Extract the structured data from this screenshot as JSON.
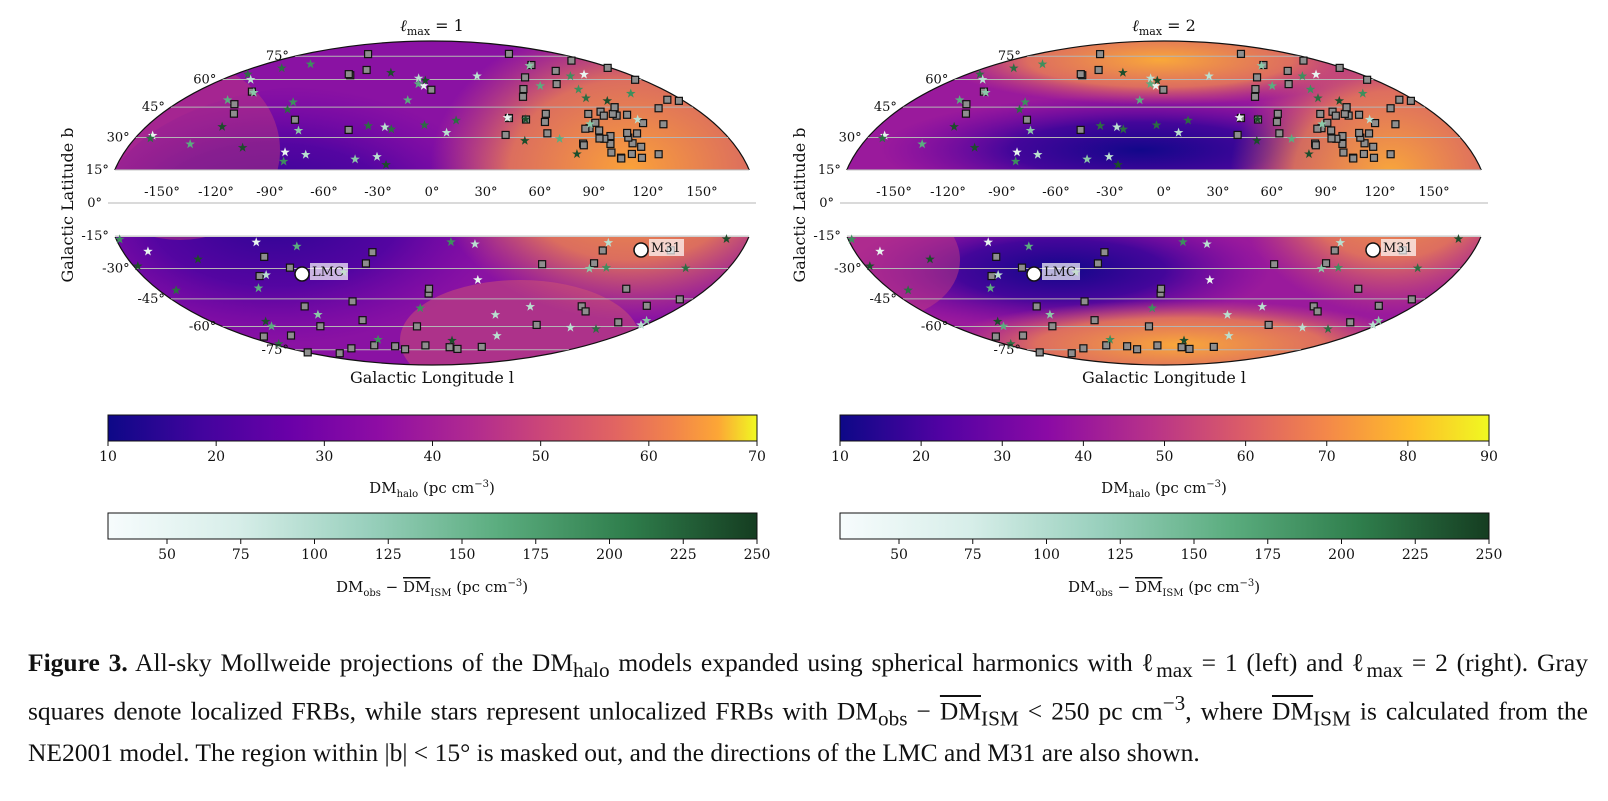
{
  "panels": [
    {
      "title": "ℓ_max = 1",
      "title_parts": {
        "ell": "ℓ",
        "sub": "max",
        "rest": " = 1"
      },
      "dm_range": [
        10,
        70
      ],
      "halo_cbar_ticks": [
        "10",
        "20",
        "30",
        "40",
        "50",
        "60",
        "70"
      ],
      "halo_cbar_label": "DM_halo (pc cm^-3)"
    },
    {
      "title": "ℓ_max = 2",
      "title_parts": {
        "ell": "ℓ",
        "sub": "max",
        "rest": " = 2"
      },
      "dm_range": [
        10,
        90
      ],
      "halo_cbar_ticks": [
        "10",
        "20",
        "30",
        "40",
        "50",
        "60",
        "70",
        "80",
        "90"
      ],
      "halo_cbar_label": "DM_halo (pc cm^-3)"
    }
  ],
  "axes": {
    "ylabel": "Galactic Latitude b",
    "xlabel": "Galactic Longitude l",
    "lon_ticks": [
      -150,
      -120,
      -90,
      -60,
      -30,
      0,
      30,
      60,
      90,
      120,
      150
    ],
    "lat_ticks": [
      75,
      60,
      45,
      30,
      15,
      0,
      -15,
      -30,
      -45,
      -60,
      -75
    ],
    "mask_abs_b": 15
  },
  "markers": {
    "lmc": {
      "label": "LMC",
      "l": -75,
      "b": -33
    },
    "m31": {
      "label": "M31",
      "l": 121,
      "b": -21
    }
  },
  "obs_cbar": {
    "range": [
      30,
      250
    ],
    "ticks": [
      "50",
      "75",
      "100",
      "125",
      "150",
      "175",
      "200",
      "225",
      "250"
    ],
    "label": "DM_obs − DM_ISM (pc cm^-3)"
  },
  "chart_data": [
    {
      "type": "heatmap",
      "title": "ℓ_max = 1",
      "projection": "Mollweide",
      "xlabel": "Galactic Longitude l",
      "ylabel": "Galactic Latitude b",
      "colorbar": {
        "label": "DM_halo (pc cm^-3)",
        "range": [
          10,
          70
        ]
      },
      "secondary_colorbar": {
        "label": "DM_obs − DM_ISM (pc cm^-3)",
        "range": [
          30,
          250
        ]
      },
      "features": [
        "gray squares: localized FRBs",
        "stars: unlocalized FRBs",
        "LMC",
        "M31"
      ]
    },
    {
      "type": "heatmap",
      "title": "ℓ_max = 2",
      "projection": "Mollweide",
      "xlabel": "Galactic Longitude l",
      "ylabel": "Galactic Latitude b",
      "colorbar": {
        "label": "DM_halo (pc cm^-3)",
        "range": [
          10,
          90
        ]
      },
      "secondary_colorbar": {
        "label": "DM_obs − DM_ISM (pc cm^-3)",
        "range": [
          30,
          250
        ]
      },
      "features": [
        "gray squares: localized FRBs",
        "stars: unlocalized FRBs",
        "LMC",
        "M31"
      ]
    }
  ],
  "caption": {
    "label": "Figure 3.",
    "t1": " All-sky Mollweide projections of the DM",
    "s1": "halo",
    "t2": " models expanded using spherical harmonics with ℓ",
    "s2": "max",
    "t3": " = 1 (left) and ℓ",
    "s3": "max",
    "t4": " = 2 (right).  Gray squares denote localized FRBs, while stars represent unlocalized FRBs with DM",
    "s4": "obs",
    "t5": " − ",
    "o5": "DM",
    "s5": "ISM",
    "t6": " < 250 pc cm",
    "p6": "−3",
    "t7": ", where ",
    "o7": "DM",
    "s7": "ISM",
    "t8": " is calculated from the NE2001 model. The region within |b| < 15° is masked out, and the directions of the LMC and M31 are also shown."
  }
}
